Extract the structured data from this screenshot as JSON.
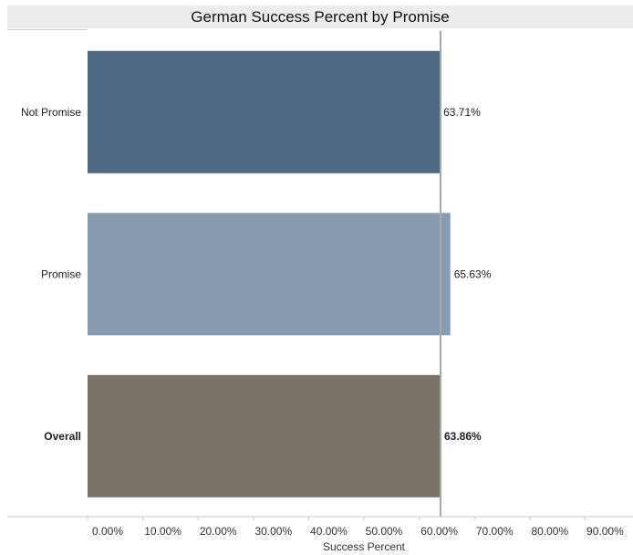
{
  "chart_data": {
    "type": "bar",
    "orientation": "horizontal",
    "title": "German Success Percent by Promise",
    "xlabel": "Success Percent",
    "ylabel": "",
    "categories": [
      "Not Promise",
      "Promise",
      "Overall"
    ],
    "values": [
      63.71,
      65.63,
      63.86
    ],
    "value_labels": [
      "63.71%",
      "65.63%",
      "63.86%"
    ],
    "bold_categories": [
      "Overall"
    ],
    "bar_colors": [
      "#4f6a82",
      "#869db1",
      "#7b736a"
    ],
    "xlim": [
      0,
      100
    ],
    "xticks": [
      0,
      10,
      20,
      30,
      40,
      50,
      60,
      70,
      80,
      90
    ],
    "xtick_labels": [
      "0.00%",
      "10.00%",
      "20.00%",
      "30.00%",
      "40.00%",
      "50.00%",
      "60.00%",
      "70.00%",
      "80.00%",
      "90.00%"
    ],
    "reference_line": 63.86,
    "reference_line_color": "#a8a8a8",
    "grid": false
  }
}
